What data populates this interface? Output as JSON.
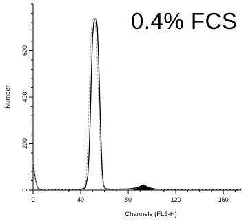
{
  "chart_data": {
    "type": "area",
    "annotation": "0.4% FCS",
    "xlabel": "Channels (FL3-H)",
    "ylabel": "Number",
    "xlim": [
      0,
      175
    ],
    "ylim": [
      0,
      800
    ],
    "x_ticks": [
      0,
      40,
      80,
      120,
      160
    ],
    "y_ticks": [
      0,
      200,
      400,
      600
    ],
    "grid": false,
    "legend": "none",
    "colors": {
      "solid": "#000000",
      "dashed": "#9a9a9a",
      "fill": "#000000"
    },
    "series": [
      {
        "style": "solid",
        "x": [
          0,
          1,
          2,
          3,
          4,
          5,
          6,
          8,
          12,
          20,
          30,
          40,
          44,
          46,
          47,
          48,
          49,
          50,
          51,
          52,
          53,
          54,
          55,
          56,
          57,
          58,
          59,
          60,
          62,
          65,
          70,
          80,
          85,
          88,
          90,
          92,
          94,
          96,
          98,
          100,
          104,
          110,
          130,
          150,
          175
        ],
        "y": [
          120,
          80,
          45,
          22,
          10,
          5,
          3,
          2,
          2,
          2,
          2,
          3,
          10,
          60,
          150,
          300,
          500,
          660,
          720,
          735,
          740,
          700,
          580,
          400,
          220,
          90,
          30,
          10,
          5,
          4,
          4,
          5,
          8,
          12,
          16,
          20,
          18,
          14,
          10,
          7,
          4,
          3,
          2,
          2,
          2
        ]
      },
      {
        "style": "dashed",
        "x": [
          0,
          1,
          2,
          3,
          4,
          5,
          6,
          8,
          12,
          20,
          30,
          40,
          44,
          45,
          46,
          47,
          48,
          49,
          50,
          51,
          52,
          53,
          54,
          55,
          56,
          57,
          58,
          60,
          62,
          65,
          70,
          80,
          90,
          100,
          120,
          150,
          175
        ],
        "y": [
          120,
          80,
          45,
          22,
          10,
          5,
          3,
          2,
          2,
          2,
          2,
          3,
          20,
          80,
          200,
          380,
          560,
          690,
          730,
          740,
          735,
          680,
          560,
          400,
          240,
          120,
          50,
          12,
          5,
          3,
          2,
          2,
          2,
          2,
          2,
          2,
          2
        ]
      },
      {
        "style": "filled",
        "x": [
          84,
          86,
          88,
          90,
          91,
          92,
          93,
          94,
          95,
          96,
          98,
          100,
          102
        ],
        "y": [
          0,
          4,
          10,
          16,
          20,
          22,
          24,
          22,
          18,
          14,
          8,
          4,
          0
        ]
      }
    ]
  }
}
